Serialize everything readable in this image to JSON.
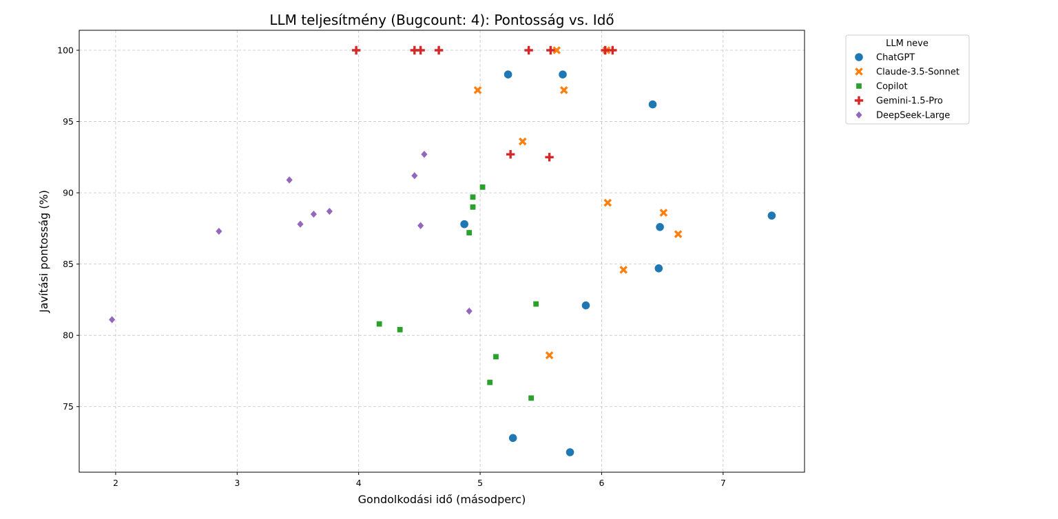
{
  "chart_data": {
    "type": "scatter",
    "title": "LLM teljesítmény (Bugcount: 4): Pontosság vs. Idő",
    "xlabel": "Gondolkodási idő (másodperc)",
    "ylabel": "Javítási pontosság (%)",
    "xlim": [
      1.7,
      7.67
    ],
    "ylim": [
      70.4,
      101.4
    ],
    "xticks": [
      2,
      3,
      4,
      5,
      6,
      7
    ],
    "yticks": [
      75,
      80,
      85,
      90,
      95,
      100
    ],
    "grid": true,
    "legend": {
      "title": "LLM neve",
      "placement": "outside-top-right"
    },
    "series": [
      {
        "name": "ChatGPT",
        "marker": "circle",
        "color": "#1f77b4",
        "points": [
          [
            5.23,
            98.3
          ],
          [
            5.68,
            98.3
          ],
          [
            6.42,
            96.2
          ],
          [
            4.87,
            87.8
          ],
          [
            6.48,
            87.6
          ],
          [
            7.4,
            88.4
          ],
          [
            6.47,
            84.7
          ],
          [
            5.87,
            82.1
          ],
          [
            5.27,
            72.8
          ],
          [
            5.74,
            71.8
          ]
        ]
      },
      {
        "name": "Claude-3.5-Sonnet",
        "marker": "x",
        "color": "#ff7f0e",
        "points": [
          [
            5.63,
            100
          ],
          [
            4.98,
            97.2
          ],
          [
            5.69,
            97.2
          ],
          [
            5.35,
            93.6
          ],
          [
            6.05,
            89.3
          ],
          [
            6.51,
            88.6
          ],
          [
            6.63,
            87.1
          ],
          [
            6.18,
            84.6
          ],
          [
            5.57,
            78.6
          ],
          [
            6.04,
            100
          ]
        ]
      },
      {
        "name": "Copilot",
        "marker": "square",
        "color": "#2ca02c",
        "points": [
          [
            5.02,
            90.4
          ],
          [
            4.94,
            89.7
          ],
          [
            4.94,
            89.0
          ],
          [
            4.91,
            87.2
          ],
          [
            5.46,
            82.2
          ],
          [
            4.17,
            80.8
          ],
          [
            4.34,
            80.4
          ],
          [
            5.13,
            78.5
          ],
          [
            5.08,
            76.7
          ],
          [
            5.42,
            75.6
          ]
        ]
      },
      {
        "name": "Gemini-1.5-Pro",
        "marker": "plus",
        "color": "#d62728",
        "points": [
          [
            3.98,
            100
          ],
          [
            4.46,
            100
          ],
          [
            4.51,
            100
          ],
          [
            4.66,
            100
          ],
          [
            5.4,
            100
          ],
          [
            5.58,
            100
          ],
          [
            6.03,
            100
          ],
          [
            6.09,
            100
          ],
          [
            5.25,
            92.7
          ],
          [
            5.57,
            92.5
          ]
        ]
      },
      {
        "name": "DeepSeek-Large",
        "marker": "diamond",
        "color": "#9467bd",
        "points": [
          [
            4.54,
            92.7
          ],
          [
            4.46,
            91.2
          ],
          [
            3.43,
            90.9
          ],
          [
            3.76,
            88.7
          ],
          [
            3.63,
            88.5
          ],
          [
            3.52,
            87.8
          ],
          [
            4.51,
            87.7
          ],
          [
            2.85,
            87.3
          ],
          [
            4.91,
            81.7
          ],
          [
            1.97,
            81.1
          ]
        ]
      }
    ]
  }
}
